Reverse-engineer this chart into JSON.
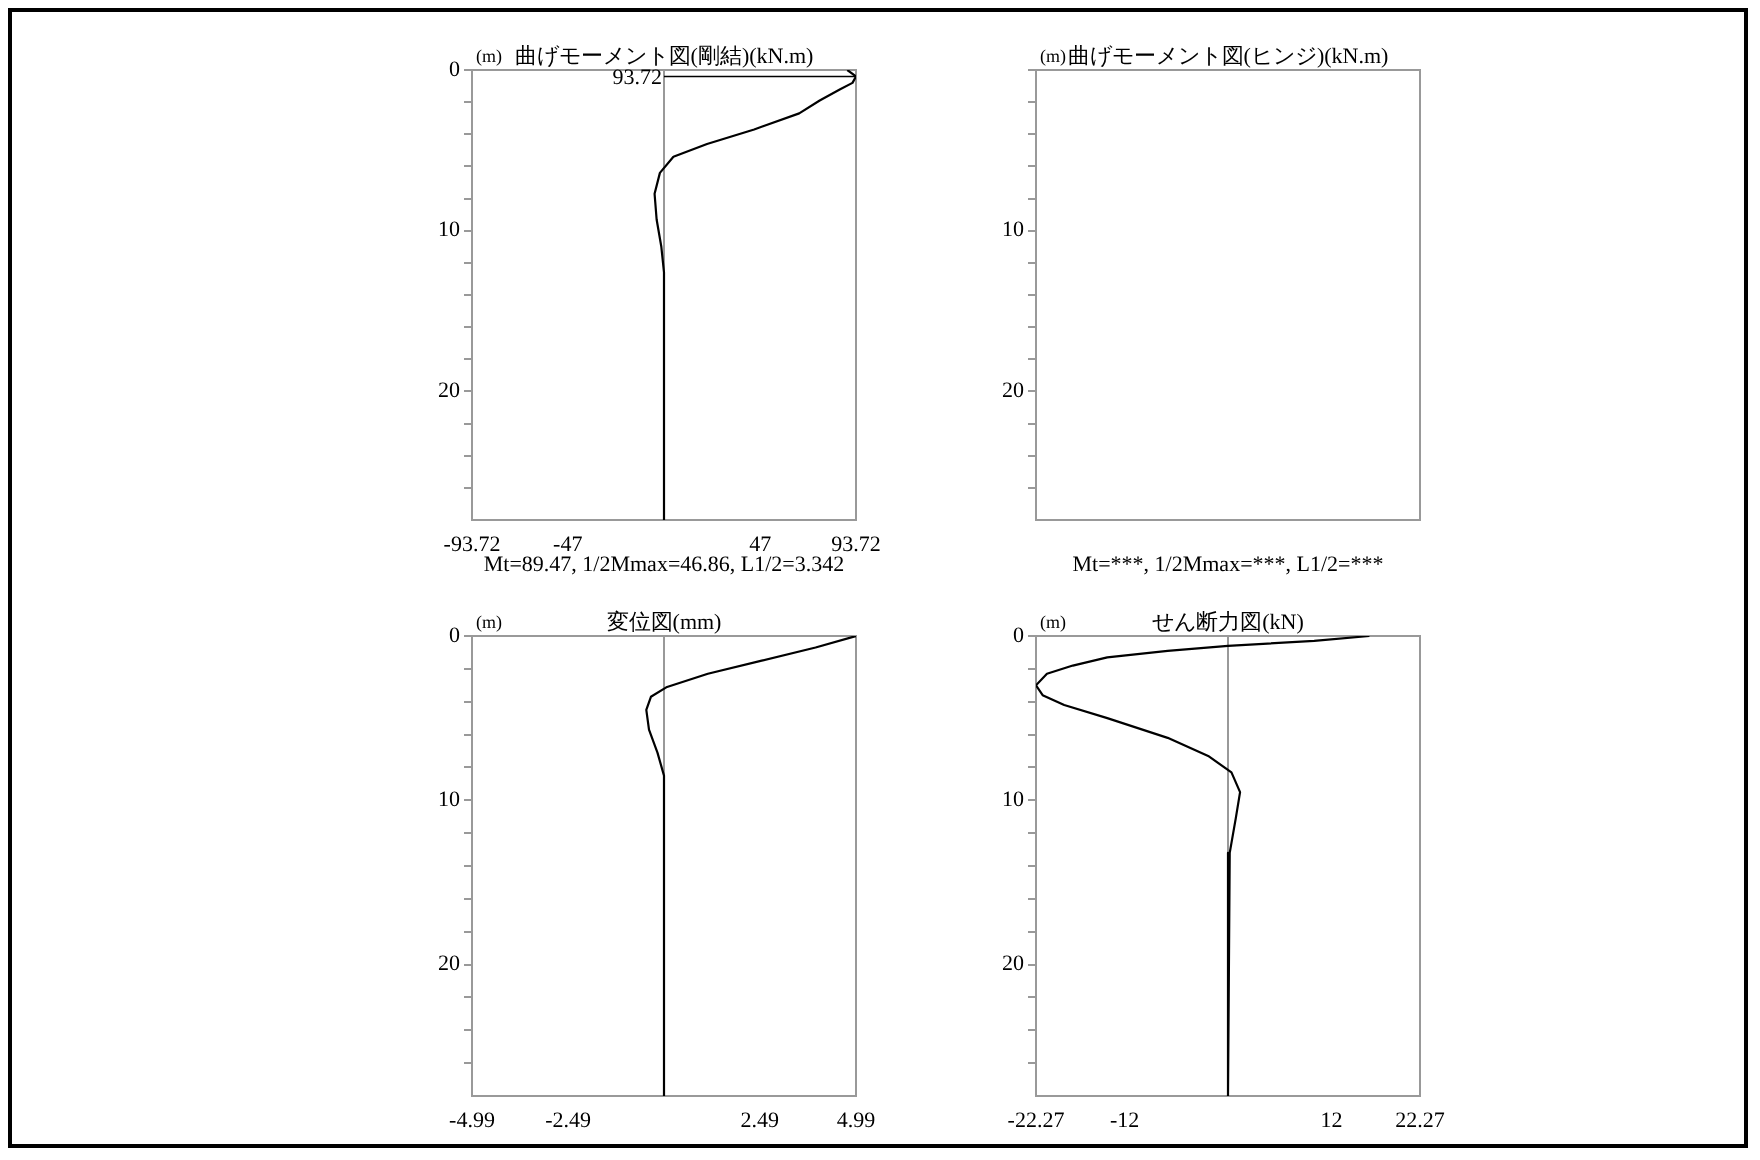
{
  "chart_data": [
    {
      "type": "line",
      "title": "曲げモーメント図(剛結)(kN.m)",
      "ylabel": "(m)",
      "color": "#000000",
      "marker": "none",
      "x": [
        89.47,
        93.72,
        92,
        86,
        76,
        66,
        44,
        21,
        4.6,
        -2,
        -4.6,
        -3.6,
        -1.3,
        0,
        0
      ],
      "values": [
        0,
        0.4,
        0.8,
        1.2,
        1.9,
        2.7,
        3.7,
        4.6,
        5.4,
        6.4,
        7.7,
        9.3,
        11,
        12.6,
        28
      ],
      "xlim": [
        -93.72,
        93.72
      ],
      "xticks": [
        -93.72,
        -47,
        47,
        93.72
      ],
      "ylim": [
        28,
        0
      ],
      "yticks": [
        0,
        {
          "value": 2,
          "label": null
        },
        {
          "value": 4,
          "label": null
        },
        {
          "value": 6,
          "label": null
        },
        {
          "value": 8,
          "label": null
        },
        10,
        {
          "value": 12,
          "label": null
        },
        {
          "value": 14,
          "label": null
        },
        {
          "value": 16,
          "label": null
        },
        {
          "value": 18,
          "label": null
        },
        20,
        {
          "value": 22,
          "label": null
        },
        {
          "value": 24,
          "label": null
        },
        {
          "value": 26,
          "label": null
        }
      ],
      "ref_lines": [
        {
          "axis": "x",
          "value": 0,
          "color": "#999999"
        }
      ],
      "annotations": [
        {
          "text": "93.72",
          "x": 93.72,
          "y": 0.4
        },
        "Mt=89.47, 1/2Mmax=46.86, L1/2=3.342"
      ]
    },
    {
      "type": "other",
      "title": "曲げモーメント図(ヒンジ)(kN.m)",
      "ylabel": "(m)",
      "annotations": [
        "0",
        "10",
        "20",
        "Mt=***, 1/2Mmax=***, L1/2=***"
      ]
    },
    {
      "type": "line",
      "title": "変位図(mm)",
      "ylabel": "(m)",
      "color": "#000000",
      "marker": "none",
      "x": [
        4.99,
        3.94,
        2.54,
        1.14,
        0.08,
        -0.34,
        -0.46,
        -0.39,
        -0.17,
        0,
        0
      ],
      "values": [
        0,
        0.7,
        1.5,
        2.3,
        3.1,
        3.7,
        4.5,
        5.7,
        7.1,
        8.5,
        28
      ],
      "xlim": [
        -4.99,
        4.99
      ],
      "xticks": [
        -4.99,
        -2.49,
        2.49,
        4.99
      ],
      "ylim": [
        28,
        0
      ],
      "yticks": [
        0,
        {
          "value": 2,
          "label": null
        },
        {
          "value": 4,
          "label": null
        },
        {
          "value": 6,
          "label": null
        },
        {
          "value": 8,
          "label": null
        },
        10,
        {
          "value": 12,
          "label": null
        },
        {
          "value": 14,
          "label": null
        },
        {
          "value": 16,
          "label": null
        },
        {
          "value": 18,
          "label": null
        },
        20,
        {
          "value": 22,
          "label": null
        },
        {
          "value": 24,
          "label": null
        },
        {
          "value": 26,
          "label": null
        }
      ],
      "ref_lines": [
        {
          "axis": "x",
          "value": 0,
          "color": "#999999"
        }
      ]
    },
    {
      "type": "line",
      "title": "せん断力図(kN)",
      "ylabel": "(m)",
      "color": "#000000",
      "marker": "none",
      "x": [
        16.4,
        10,
        0,
        -7,
        -14,
        -18,
        -21,
        -22.27,
        -21.5,
        -19,
        -14,
        -7,
        -2.3,
        0.4,
        1.4,
        0.9,
        0.2,
        0
      ],
      "values": [
        0,
        0.3,
        0.6,
        0.9,
        1.3,
        1.8,
        2.3,
        3.0,
        3.6,
        4.2,
        5.0,
        6.2,
        7.3,
        8.3,
        9.5,
        11.1,
        13.2,
        28
      ],
      "xlim": [
        -22.27,
        22.27
      ],
      "xticks": [
        -22.27,
        -12,
        12,
        22.27
      ],
      "ylim": [
        28,
        0
      ],
      "yticks": [
        0,
        {
          "value": 2,
          "label": null
        },
        {
          "value": 4,
          "label": null
        },
        {
          "value": 6,
          "label": null
        },
        {
          "value": 8,
          "label": null
        },
        10,
        {
          "value": 12,
          "label": null
        },
        {
          "value": 14,
          "label": null
        },
        {
          "value": 16,
          "label": null
        },
        {
          "value": 18,
          "label": null
        },
        20,
        {
          "value": 22,
          "label": null
        },
        {
          "value": 24,
          "label": null
        },
        {
          "value": 26,
          "label": null
        }
      ],
      "ref_lines": [
        {
          "axis": "x",
          "value": 0,
          "color": "#999999"
        }
      ]
    }
  ]
}
